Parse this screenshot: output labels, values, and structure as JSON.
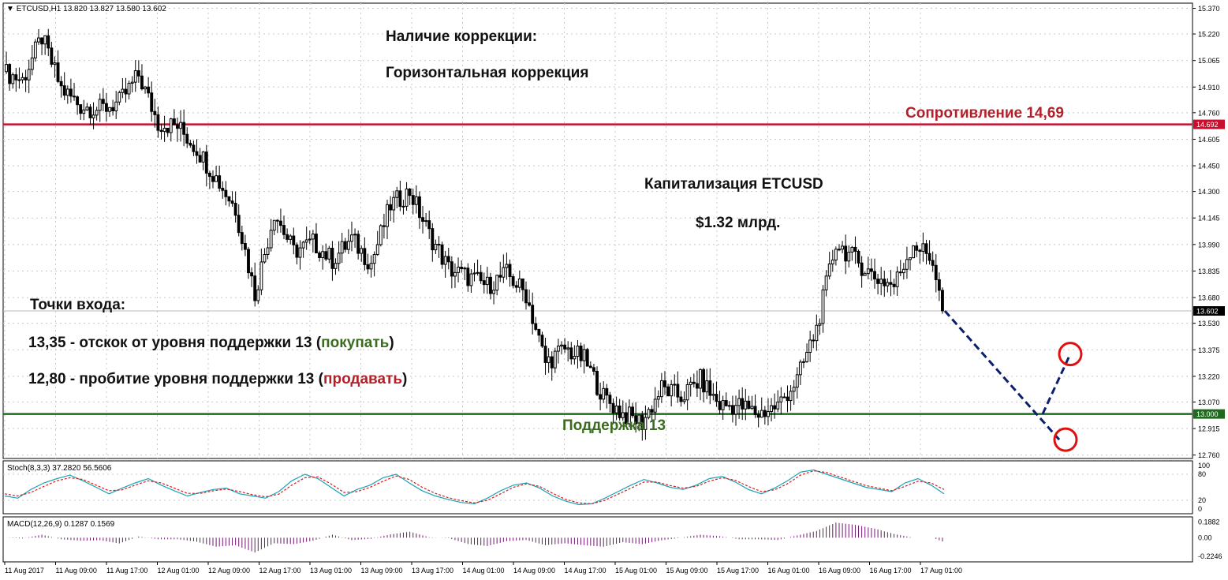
{
  "header": {
    "symbol": "ETCUSD,H1",
    "ohlc": "13.820 13.827 13.580 13.602"
  },
  "annotations": {
    "correction_title": "Наличие коррекции:",
    "correction_type": "Горизонтальная коррекция",
    "cap_title": "Капитализация ETCUSD",
    "cap_value": "$1.32 млрд.",
    "entry_title": "Точки входа:",
    "entry1_prefix": "13,35 - отскок от уровня поддержки 13 (",
    "entry1_action": "покупать",
    "entry1_suffix": ")",
    "entry2_prefix": "12,80 - пробитие уровня поддержки 13 (",
    "entry2_action": "продавать",
    "entry2_suffix": ")",
    "resistance_label": "Сопротивление 14,69",
    "support_label": "Поддержка 13"
  },
  "colors": {
    "resistance": "#c8102e",
    "support": "#1e6b1e",
    "forecast": "#0b1f6e",
    "stoch_main": "#1aa3b8",
    "stoch_signal": "#d22020",
    "macd": "#6a1a6a",
    "price_tag": "#000000"
  },
  "chart_data": {
    "type": "candlestick",
    "symbol": "ETCUSD,H1",
    "y_ticks": [
      15.37,
      15.22,
      15.065,
      14.91,
      14.76,
      14.605,
      14.45,
      14.3,
      14.145,
      13.99,
      13.835,
      13.68,
      13.53,
      13.375,
      13.22,
      13.07,
      12.915,
      12.76
    ],
    "ylim": [
      12.74,
      15.4
    ],
    "x_ticks": [
      "11 Aug 2017",
      "11 Aug 09:00",
      "11 Aug 17:00",
      "12 Aug 01:00",
      "12 Aug 09:00",
      "12 Aug 17:00",
      "13 Aug 01:00",
      "13 Aug 09:00",
      "13 Aug 17:00",
      "14 Aug 01:00",
      "14 Aug 09:00",
      "14 Aug 17:00",
      "15 Aug 01:00",
      "15 Aug 09:00",
      "15 Aug 17:00",
      "16 Aug 01:00",
      "16 Aug 09:00",
      "16 Aug 17:00",
      "17 Aug 01:00"
    ],
    "levels": [
      {
        "name": "resistance",
        "value": 14.692
      },
      {
        "name": "support",
        "value": 13.0
      }
    ],
    "current_price": 13.602,
    "price_path": [
      [
        0,
        15.0
      ],
      [
        6,
        14.95
      ],
      [
        12,
        15.2
      ],
      [
        18,
        14.9
      ],
      [
        24,
        14.8
      ],
      [
        30,
        14.78
      ],
      [
        36,
        14.82
      ],
      [
        42,
        14.98
      ],
      [
        48,
        14.7
      ],
      [
        54,
        14.68
      ],
      [
        60,
        14.55
      ],
      [
        66,
        14.38
      ],
      [
        72,
        14.2
      ],
      [
        78,
        13.7
      ],
      [
        84,
        14.18
      ],
      [
        90,
        13.95
      ],
      [
        96,
        14.0
      ],
      [
        102,
        13.9
      ],
      [
        108,
        14.02
      ],
      [
        114,
        13.88
      ],
      [
        120,
        14.22
      ],
      [
        126,
        14.3
      ],
      [
        132,
        14.05
      ],
      [
        138,
        13.85
      ],
      [
        144,
        13.8
      ],
      [
        150,
        13.75
      ],
      [
        156,
        13.82
      ],
      [
        162,
        13.7
      ],
      [
        168,
        13.3
      ],
      [
        174,
        13.38
      ],
      [
        180,
        13.32
      ],
      [
        186,
        13.1
      ],
      [
        192,
        13.0
      ],
      [
        198,
        12.95
      ],
      [
        204,
        13.15
      ],
      [
        210,
        13.1
      ],
      [
        216,
        13.2
      ],
      [
        222,
        13.05
      ],
      [
        228,
        13.05
      ],
      [
        234,
        13.0
      ],
      [
        240,
        13.05
      ],
      [
        246,
        13.2
      ],
      [
        252,
        13.5
      ],
      [
        258,
        14.0
      ],
      [
        264,
        13.9
      ],
      [
        270,
        13.8
      ],
      [
        276,
        13.75
      ],
      [
        282,
        14.0
      ],
      [
        288,
        13.9
      ],
      [
        291,
        13.6
      ]
    ],
    "forecast_path": [
      [
        13.602,
        0
      ],
      [
        13.0,
        0.78
      ],
      [
        13.35,
        1.0
      ]
    ],
    "forecast_down_target": 12.85,
    "forecast_up_target": 13.35,
    "indicators": [
      {
        "name": "Stoch(8,3,3)",
        "values": "37.2820 56.5606",
        "y_ticks": [
          100,
          80,
          20,
          0
        ],
        "main": [
          30,
          25,
          45,
          60,
          70,
          78,
          65,
          50,
          35,
          48,
          60,
          70,
          55,
          42,
          30,
          38,
          45,
          48,
          35,
          30,
          25,
          40,
          65,
          80,
          70,
          50,
          30,
          45,
          55,
          72,
          80,
          60,
          42,
          30,
          22,
          15,
          12,
          25,
          42,
          55,
          60,
          48,
          30,
          18,
          10,
          12,
          25,
          40,
          55,
          68,
          60,
          50,
          45,
          55,
          70,
          75,
          62,
          45,
          35,
          48,
          65,
          85,
          90,
          80,
          70,
          60,
          50,
          45,
          40,
          60,
          70,
          55,
          35
        ],
        "signal": [
          35,
          30,
          38,
          52,
          65,
          72,
          68,
          55,
          42,
          44,
          55,
          65,
          60,
          48,
          36,
          36,
          42,
          46,
          40,
          33,
          28,
          34,
          55,
          72,
          74,
          58,
          38,
          40,
          50,
          64,
          76,
          68,
          50,
          36,
          26,
          19,
          14,
          20,
          35,
          50,
          58,
          52,
          36,
          22,
          14,
          12,
          20,
          34,
          48,
          62,
          62,
          54,
          48,
          52,
          64,
          72,
          66,
          52,
          40,
          44,
          58,
          78,
          88,
          84,
          74,
          64,
          54,
          48,
          42,
          52,
          64,
          60,
          45
        ]
      },
      {
        "name": "MACD(12,26,9)",
        "values": "0.1287 0.1569",
        "y_ticks": [
          0.1882,
          0.0,
          -0.2246
        ]
      }
    ]
  }
}
